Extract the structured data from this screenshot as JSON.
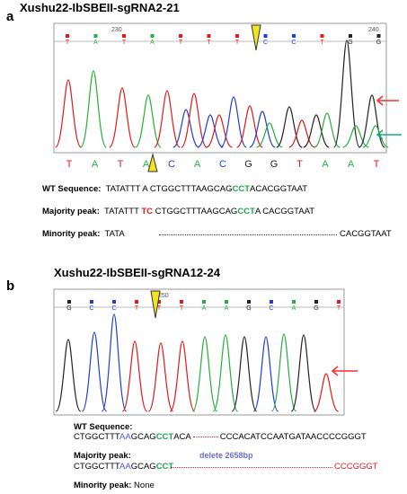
{
  "panel_a": {
    "letter": "a",
    "title": "Xushu22-IbSBEII-sgRNA2-21",
    "ruler_ticks": [
      "230",
      "240"
    ],
    "top_bases": [
      "T",
      "A",
      "T",
      "A",
      "T",
      "T",
      "T",
      "C",
      "C",
      "T",
      "G",
      "G"
    ],
    "bottom_bases": [
      "T",
      "A",
      "T",
      "A",
      "C",
      "A",
      "C",
      "G",
      "G",
      "T",
      "A",
      "A",
      "T"
    ],
    "wt": {
      "label": "WT Sequence:",
      "pre": "TATATTT A CTGGCTTTAAGCAG",
      "pam": "CCT",
      "post": "ACACGGTAAT"
    },
    "majority": {
      "label": "Majority peak:",
      "pre": "TATATTT ",
      "ins": "TC",
      "mid": " CTGGCTTTAAGCAG",
      "pam": "CCT",
      "post": "A CACGGTAAT"
    },
    "minority": {
      "label": "Minority peak:",
      "pre": "TATA",
      "post": "CACGGTAAT"
    }
  },
  "panel_b": {
    "letter": "b",
    "title": "Xushu22-IbSBEII-sgRNA12-24",
    "ruler_ticks": [
      "250"
    ],
    "top_bases": [
      "G",
      "C",
      "C",
      "T",
      "T",
      "T",
      "A",
      "A",
      "G",
      "C",
      "A",
      "G",
      "T"
    ],
    "wt": {
      "label": "WT Sequence:",
      "pre": "CTGGCTTT",
      "aa": "AA",
      "mid": "GCAG",
      "pam": "CCT",
      "post1": "ACA",
      "post2": "CCCACATCCAATGATAACCCCGGGT"
    },
    "majority": {
      "label": "Majority peak:",
      "pre": "CTGGCTTT",
      "aa": "AA",
      "mid": "GCAG",
      "pam": "CCT",
      "tail": "CCCGGGT",
      "deletion_note": "delete 2658bp"
    },
    "minority": {
      "label": "Minority peak:",
      "value": "None"
    }
  },
  "colors": {
    "A": "#27ae3c",
    "C": "#1f3fd0",
    "G": "#222222",
    "T": "#e01b1b",
    "arrow_red": "#ff2a2a",
    "arrow_green": "#1aa884",
    "marker": "#f2e51c"
  }
}
